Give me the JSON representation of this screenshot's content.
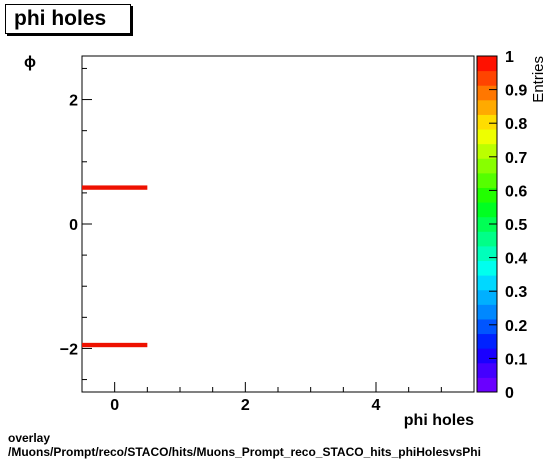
{
  "chart_data": {
    "type": "heatmap",
    "title": "phi holes",
    "xlabel": "phi holes",
    "ylabel": "ϕ",
    "zlabel": "Entries",
    "xlim": [
      -0.5,
      5.5
    ],
    "ylim": [
      -2.7,
      2.7
    ],
    "zlim": [
      0,
      1
    ],
    "x_ticks": [
      "0",
      "2",
      "4"
    ],
    "y_ticks": [
      "−2",
      "0",
      "2"
    ],
    "z_ticks": [
      "0",
      "0.1",
      "0.2",
      "0.3",
      "0.4",
      "0.5",
      "0.6",
      "0.7",
      "0.8",
      "0.9",
      "1"
    ],
    "cells": [
      {
        "x0": -0.5,
        "x1": 0.5,
        "y0": 0.55,
        "y1": 0.62,
        "z": 1.0
      },
      {
        "x0": -0.5,
        "x1": 0.5,
        "y0": -1.98,
        "y1": -1.91,
        "z": 1.0
      }
    ],
    "palette": [
      "#6a00ff",
      "#4400ff",
      "#1a00ff",
      "#0022ff",
      "#0055ff",
      "#0088ff",
      "#00b0ff",
      "#00d8ff",
      "#00ffee",
      "#00ffbb",
      "#00ff88",
      "#00ff55",
      "#00ff22",
      "#22ff00",
      "#55ff00",
      "#88ff00",
      "#bbff00",
      "#eeff00",
      "#ffdd00",
      "#ffaa00",
      "#ff7700",
      "#ff4400",
      "#ff1100"
    ],
    "cell_color": "#ee1100",
    "grid": false
  },
  "footer": {
    "line1": "overlay",
    "line2": "/Muons/Prompt/reco/STACO/hits/Muons_Prompt_reco_STACO_hits_phiHolesvsPhi"
  }
}
